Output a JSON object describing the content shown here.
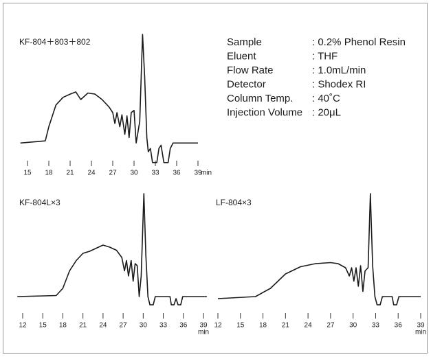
{
  "chart_data": [
    {
      "type": "line",
      "title": "KF-804＋803＋802",
      "xlabel": "min",
      "color": "#1a1a1a",
      "xlim": [
        14,
        39
      ],
      "ylim": [
        -20,
        100
      ],
      "xticks": [
        15,
        18,
        21,
        24,
        27,
        30,
        33,
        36,
        39
      ],
      "x": [
        14,
        17.5,
        18,
        19,
        20,
        21,
        21.8,
        22.5,
        23.5,
        24.5,
        25.5,
        26.5,
        27,
        27.3,
        27.6,
        28,
        28.3,
        28.7,
        29,
        29.3,
        29.6,
        30,
        30.3,
        30.8,
        31.2,
        31.5,
        31.8,
        32,
        32.3,
        32.6,
        33.2,
        33.5,
        33.8,
        34.2,
        34.8,
        35.1,
        35.5,
        39
      ],
      "values": [
        0,
        2,
        15,
        35,
        42,
        45,
        47,
        40,
        46,
        45,
        40,
        33,
        28,
        18,
        28,
        15,
        26,
        8,
        25,
        5,
        28,
        30,
        0,
        20,
        100,
        60,
        5,
        -8,
        -5,
        -18,
        -18,
        -5,
        -2,
        -18,
        -18,
        -5,
        0,
        0
      ]
    },
    {
      "type": "line",
      "title": "KF-804L×3",
      "xlabel": "min",
      "color": "#1a1a1a",
      "xlim": [
        12,
        39
      ],
      "ylim": [
        -10,
        100
      ],
      "xticks": [
        12,
        15,
        18,
        21,
        24,
        27,
        30,
        33,
        36,
        39
      ],
      "x": [
        11.2,
        17,
        18,
        19,
        20,
        21,
        22,
        23,
        24,
        25,
        26,
        26.8,
        27.2,
        27.5,
        27.8,
        28.2,
        28.5,
        28.8,
        29.1,
        29.4,
        29.7,
        30.1,
        30.4,
        30.7,
        31,
        31.5,
        31.8,
        34,
        34.2,
        34.6,
        34.9,
        35.2,
        35.6,
        35.9,
        39.5
      ],
      "values": [
        0,
        1,
        8,
        25,
        35,
        42,
        44,
        47,
        50,
        48,
        45,
        38,
        25,
        35,
        20,
        35,
        15,
        32,
        30,
        0,
        20,
        100,
        40,
        0,
        -8,
        -8,
        0,
        0,
        -8,
        -8,
        -2,
        -8,
        -8,
        0,
        0
      ]
    },
    {
      "type": "line",
      "title": "LF-804×3",
      "xlabel": "min",
      "color": "#1a1a1a",
      "xlim": [
        12,
        39
      ],
      "ylim": [
        -10,
        100
      ],
      "xticks": [
        12,
        15,
        18,
        21,
        24,
        27,
        30,
        33,
        36,
        39
      ],
      "x": [
        12,
        17,
        19,
        21,
        23,
        25,
        27,
        28,
        29,
        29.5,
        29.8,
        30.1,
        30.4,
        30.7,
        31,
        31.3,
        31.6,
        32,
        32.3,
        32.6,
        32.9,
        33.2,
        33.6,
        33.9,
        35.2,
        35.4,
        35.8,
        36.1,
        39
      ],
      "values": [
        -2,
        0,
        8,
        22,
        29,
        32,
        33,
        32,
        28,
        20,
        28,
        15,
        28,
        10,
        30,
        5,
        25,
        28,
        100,
        30,
        0,
        -8,
        -8,
        0,
        0,
        -8,
        -8,
        0,
        0
      ]
    }
  ],
  "conditions": [
    [
      "Sample",
      ": 0.2% Phenol Resin"
    ],
    [
      "Eluent",
      ": THF"
    ],
    [
      "Flow Rate",
      ": 1.0mL/min"
    ],
    [
      "Detector",
      ": Shodex RI"
    ],
    [
      "Column Temp.",
      ": 40˚C"
    ],
    [
      "Injection Volume",
      ": 20μL"
    ]
  ]
}
